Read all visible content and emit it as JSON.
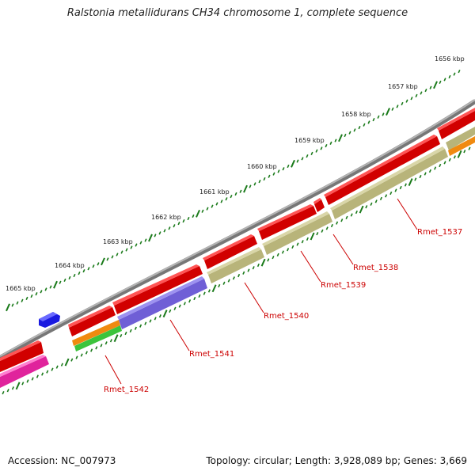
{
  "title": "Ralstonia metallidurans CH34 chromosome 1, complete sequence",
  "accession": "Accession: NC_007973",
  "topology": "Topology: circular; Length: 3,928,089 bp; Genes: 3,669",
  "kbp_labels": [
    "1656 kbp",
    "1657 kbp",
    "1658 kbp",
    "1659 kbp",
    "1660 kbp",
    "1661 kbp",
    "1662 kbp",
    "1663 kbp",
    "1664 kbp",
    "1665 kbp"
  ],
  "gene_labels": [
    "Rmet_1537",
    "Rmet_1538",
    "Rmet_1539",
    "Rmet_1540",
    "Rmet_1541",
    "Rmet_1542"
  ],
  "colors": {
    "backbone": "#8a8a8a",
    "tick": "#1a7a1a",
    "gene_red": "#ee1111",
    "gene_blue": "#1a1ae0",
    "olive": "#b8b47a",
    "purple": "#6f5fd6",
    "orange": "#f08a10",
    "green": "#3cc43c",
    "magenta": "#e0239c",
    "label": "#cc0000"
  }
}
